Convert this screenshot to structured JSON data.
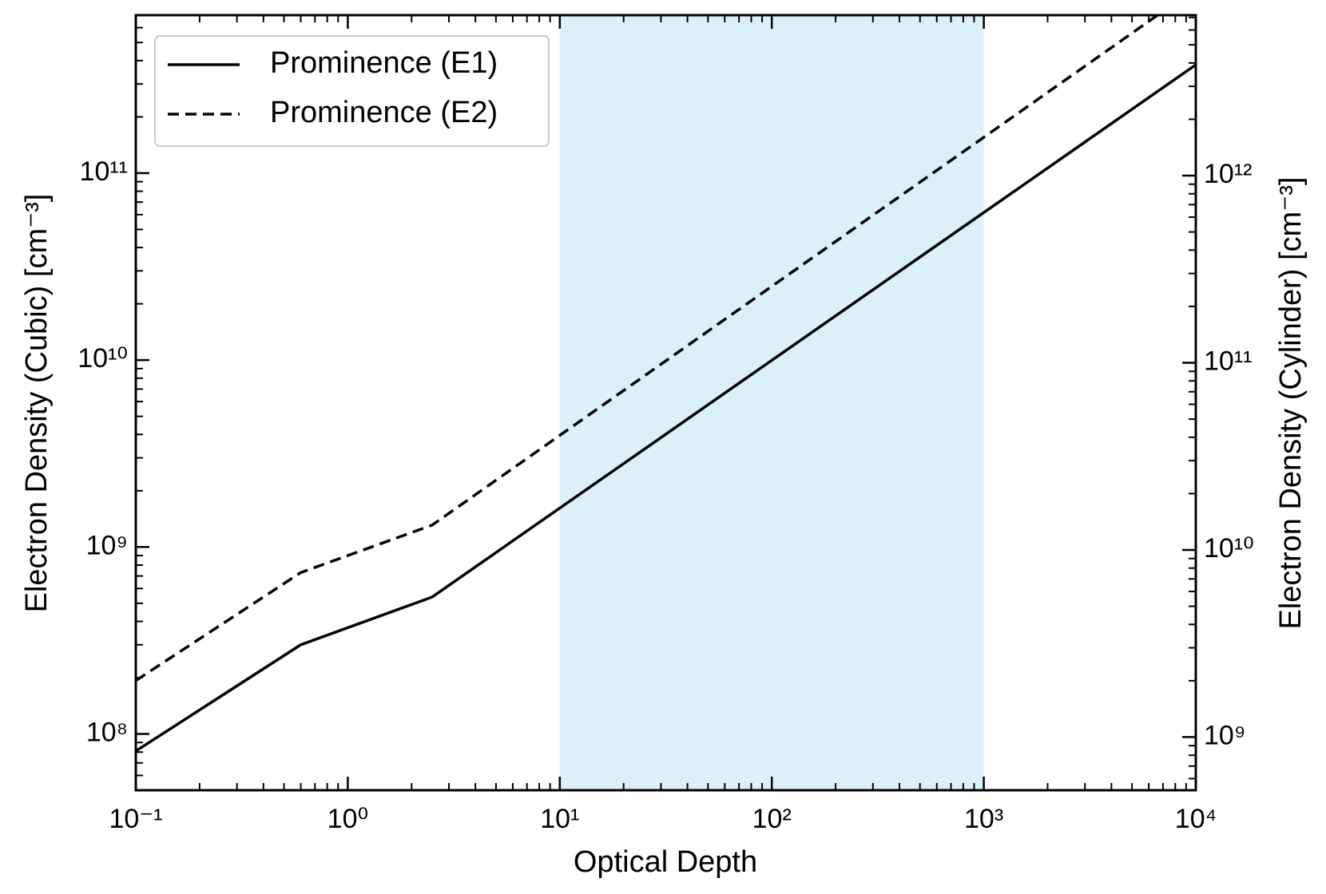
{
  "chart_data": {
    "type": "line",
    "xlabel": "Optical Depth",
    "ylabel": "Electron Density (Cubic) [cm⁻³]",
    "y2label": "Electron Density (Cylinder) [cm⁻³]",
    "xscale": "log",
    "yscale": "log",
    "y2scale": "log",
    "xlim": [
      0.1,
      10000
    ],
    "ylim": [
      50000000,
      700000000000
    ],
    "y2lim": [
      520000000,
      7200000000000
    ],
    "xticks": [
      {
        "value": 0.1,
        "label": "10⁻¹"
      },
      {
        "value": 1,
        "label": "10⁰"
      },
      {
        "value": 10,
        "label": "10¹"
      },
      {
        "value": 100,
        "label": "10²"
      },
      {
        "value": 1000,
        "label": "10³"
      },
      {
        "value": 10000,
        "label": "10⁴"
      }
    ],
    "yticks": [
      {
        "value": 100000000,
        "label": "10⁸"
      },
      {
        "value": 1000000000,
        "label": "10⁹"
      },
      {
        "value": 10000000000,
        "label": "10¹⁰"
      },
      {
        "value": 100000000000,
        "label": "10¹¹"
      }
    ],
    "y2ticks": [
      {
        "value": 1000000000,
        "label": "10⁹"
      },
      {
        "value": 10000000000,
        "label": "10¹⁰"
      },
      {
        "value": 100000000000,
        "label": "10¹¹"
      },
      {
        "value": 1000000000000,
        "label": "10¹²"
      }
    ],
    "minor_ticks": true,
    "shaded_span": {
      "x": [
        10,
        1000
      ],
      "color": "#dcf0f9"
    },
    "legend": "upper left",
    "series": [
      {
        "name": "Prominence (E1)",
        "color": "#000000",
        "dash": "solid",
        "x": [
          0.1,
          0.6,
          2.5,
          10000
        ],
        "values": [
          81000000,
          300000000,
          540000000,
          380000000000
        ]
      },
      {
        "name": "Prominence (E2)",
        "color": "#000000",
        "dash": "dashed",
        "x": [
          0.1,
          0.6,
          2.5,
          6600
        ],
        "values": [
          193000000,
          730000000,
          1310000000,
          700000000000
        ]
      }
    ]
  }
}
